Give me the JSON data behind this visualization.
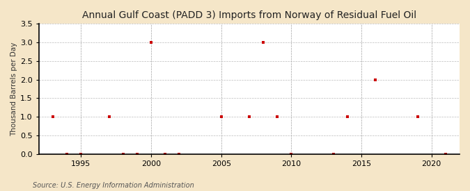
{
  "title": "Annual Gulf Coast (PADD 3) Imports from Norway of Residual Fuel Oil",
  "ylabel": "Thousand Barrels per Day",
  "source": "Source: U.S. Energy Information Administration",
  "figure_bg": "#f5e6c8",
  "plot_bg": "#ffffff",
  "data_color": "#cc0000",
  "xlim": [
    1992,
    2022
  ],
  "ylim": [
    0.0,
    3.5
  ],
  "yticks": [
    0.0,
    0.5,
    1.0,
    1.5,
    2.0,
    2.5,
    3.0,
    3.5
  ],
  "xticks": [
    1995,
    2000,
    2005,
    2010,
    2015,
    2020
  ],
  "years": [
    1993,
    1994,
    1995,
    1997,
    1998,
    1999,
    2000,
    2001,
    2002,
    2005,
    2007,
    2008,
    2009,
    2010,
    2013,
    2014,
    2016,
    2019,
    2021
  ],
  "values": [
    1.0,
    0.0,
    0.0,
    1.0,
    0.0,
    0.0,
    3.0,
    0.0,
    0.0,
    1.0,
    1.0,
    3.0,
    1.0,
    0.0,
    0.0,
    1.0,
    2.0,
    1.0,
    0.0
  ],
  "vline_years": [
    1995,
    2000,
    2005,
    2010,
    2015,
    2020
  ],
  "title_fontsize": 10,
  "label_fontsize": 7.5,
  "tick_fontsize": 8,
  "source_fontsize": 7,
  "marker_size": 3.5
}
